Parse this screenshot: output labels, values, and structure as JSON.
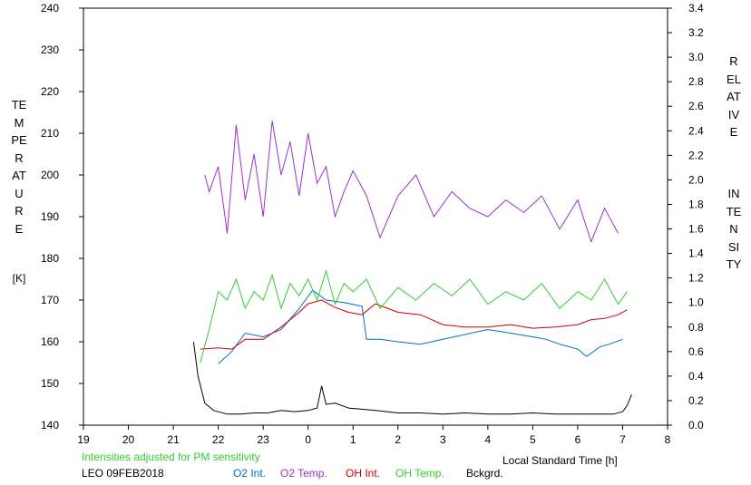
{
  "chart_data": {
    "type": "line",
    "title": "",
    "xlabel": "Local Standard Time [h]",
    "ylabel": "TEMPERATURE [K]",
    "y2label": "RELATIVE INTENSITY",
    "x_ticks": [
      "19",
      "20",
      "21",
      "22",
      "23",
      "0",
      "1",
      "2",
      "3",
      "4",
      "5",
      "6",
      "7",
      "8"
    ],
    "x_range_hours": [
      19,
      32
    ],
    "ylim": [
      140,
      240
    ],
    "y_ticks": [
      140,
      150,
      160,
      170,
      180,
      190,
      200,
      210,
      220,
      230,
      240
    ],
    "y2lim": [
      0.0,
      3.4
    ],
    "y2_ticks": [
      "0.0",
      "0.2",
      "0.4",
      "0.6",
      "0.8",
      "1.0",
      "1.2",
      "1.4",
      "1.6",
      "1.8",
      "2.0",
      "2.2",
      "2.4",
      "2.6",
      "2.8",
      "3.0",
      "3.2",
      "3.4"
    ],
    "note": "Intensities adjusted for PM sensitivity",
    "station_date": "LEO 09FEB2018",
    "series": [
      {
        "name": "O2 Int.",
        "color": "#0070c0",
        "axis": "right",
        "x": [
          22.0,
          22.3,
          22.6,
          23.0,
          23.4,
          23.8,
          24.1,
          24.4,
          24.8,
          25.2,
          25.3,
          25.6,
          26.0,
          26.5,
          27.0,
          27.5,
          28.0,
          28.5,
          29.0,
          29.3,
          29.6,
          30.0,
          30.2,
          30.5,
          30.7,
          31.0
        ],
        "y": [
          0.5,
          0.6,
          0.75,
          0.72,
          0.78,
          0.95,
          1.1,
          1.02,
          1.0,
          0.97,
          0.7,
          0.7,
          0.68,
          0.66,
          0.7,
          0.74,
          0.78,
          0.75,
          0.72,
          0.7,
          0.66,
          0.62,
          0.56,
          0.64,
          0.66,
          0.7
        ]
      },
      {
        "name": "O2 Temp.",
        "color": "#9933cc",
        "axis": "left",
        "x": [
          21.7,
          21.8,
          22.0,
          22.2,
          22.4,
          22.6,
          22.8,
          23.0,
          23.2,
          23.4,
          23.6,
          23.8,
          24.0,
          24.2,
          24.4,
          24.6,
          24.8,
          25.0,
          25.3,
          25.6,
          26.0,
          26.4,
          26.8,
          27.2,
          27.6,
          28.0,
          28.4,
          28.8,
          29.2,
          29.6,
          30.0,
          30.3,
          30.6,
          30.9
        ],
        "y": [
          200,
          196,
          202,
          186,
          212,
          194,
          205,
          190,
          213,
          200,
          208,
          195,
          210,
          198,
          202,
          190,
          196,
          201,
          195,
          185,
          195,
          200,
          190,
          196,
          192,
          190,
          194,
          191,
          195,
          187,
          194,
          184,
          192,
          186
        ]
      },
      {
        "name": "OH Int.",
        "color": "#cc0000",
        "axis": "right",
        "x": [
          21.6,
          22.0,
          22.3,
          22.6,
          23.0,
          23.4,
          23.8,
          24.0,
          24.3,
          24.6,
          24.9,
          25.2,
          25.5,
          26.0,
          26.5,
          27.0,
          27.5,
          28.0,
          28.5,
          29.0,
          29.5,
          30.0,
          30.3,
          30.6,
          30.9,
          31.1
        ],
        "y": [
          0.62,
          0.63,
          0.62,
          0.7,
          0.7,
          0.8,
          0.92,
          0.99,
          1.02,
          0.96,
          0.92,
          0.9,
          0.99,
          0.92,
          0.9,
          0.82,
          0.8,
          0.8,
          0.82,
          0.79,
          0.8,
          0.82,
          0.86,
          0.87,
          0.9,
          0.94
        ]
      },
      {
        "name": "OH Temp.",
        "color": "#33cc33",
        "axis": "left",
        "x": [
          21.6,
          21.8,
          22.0,
          22.2,
          22.4,
          22.6,
          22.8,
          23.0,
          23.2,
          23.4,
          23.6,
          23.8,
          24.0,
          24.2,
          24.4,
          24.6,
          24.8,
          25.0,
          25.3,
          25.6,
          26.0,
          26.4,
          26.8,
          27.2,
          27.6,
          28.0,
          28.4,
          28.8,
          29.2,
          29.6,
          30.0,
          30.3,
          30.6,
          30.9,
          31.1
        ],
        "y": [
          155,
          163,
          172,
          170,
          175,
          168,
          172,
          170,
          176,
          168,
          174,
          171,
          175,
          170,
          177,
          169,
          174,
          172,
          175,
          168,
          173,
          170,
          174,
          171,
          175,
          169,
          172,
          170,
          174,
          168,
          172,
          170,
          175,
          169,
          172
        ]
      },
      {
        "name": "Bckgrd.",
        "color": "#000000",
        "axis": "right",
        "x": [
          21.45,
          21.55,
          21.7,
          21.9,
          22.2,
          22.5,
          22.8,
          23.1,
          23.4,
          23.7,
          24.0,
          24.2,
          24.3,
          24.4,
          24.6,
          24.9,
          25.2,
          25.5,
          26.0,
          26.5,
          27.0,
          27.5,
          28.0,
          28.5,
          29.0,
          29.5,
          30.0,
          30.5,
          30.8,
          31.0,
          31.1,
          31.2
        ],
        "y": [
          0.68,
          0.4,
          0.18,
          0.12,
          0.09,
          0.09,
          0.1,
          0.1,
          0.12,
          0.11,
          0.12,
          0.14,
          0.32,
          0.17,
          0.18,
          0.14,
          0.13,
          0.12,
          0.1,
          0.1,
          0.09,
          0.1,
          0.09,
          0.09,
          0.1,
          0.09,
          0.09,
          0.09,
          0.09,
          0.11,
          0.16,
          0.25
        ]
      }
    ]
  },
  "labels": {
    "left_axis_title": "TEMPERATURE",
    "left_axis_unit": "[K]",
    "right_axis_title_1": "RELATIVE",
    "right_axis_title_2": "INTENSITY"
  }
}
